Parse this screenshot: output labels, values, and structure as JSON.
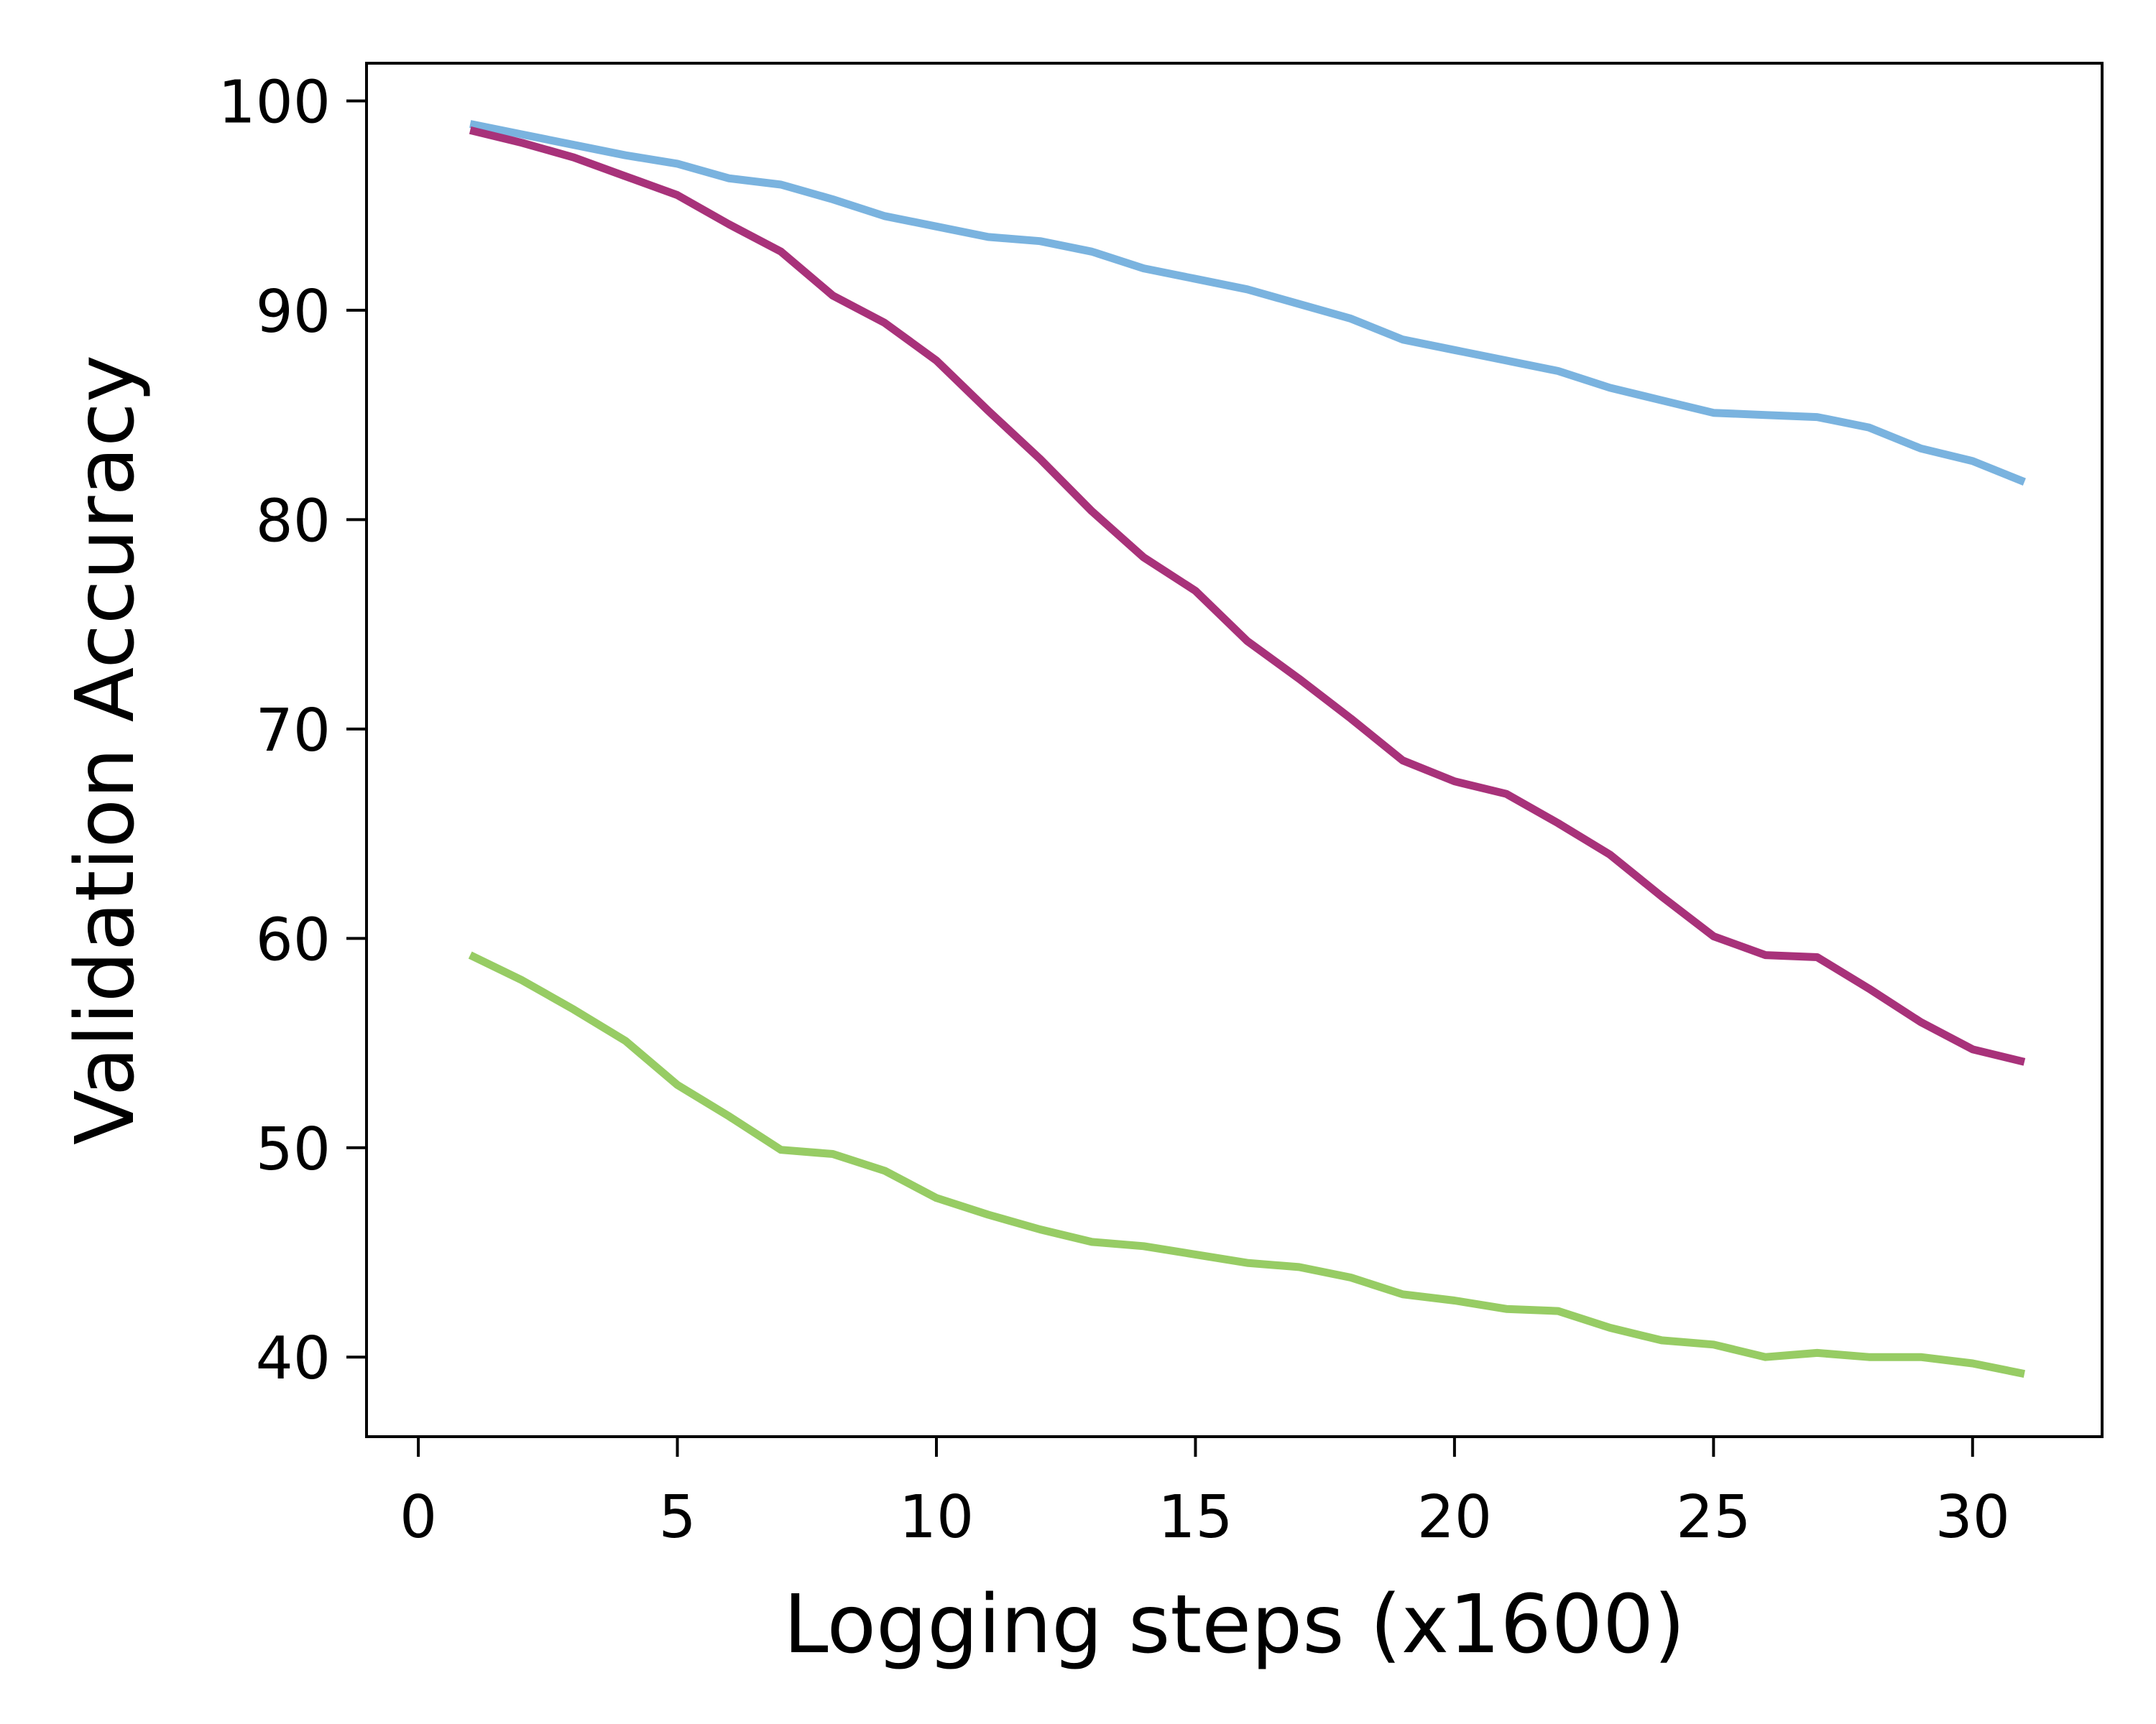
{
  "chart_data": {
    "type": "line",
    "title": "",
    "xlabel": "Logging steps (x1600)",
    "ylabel": "Validation Accuracy",
    "xlim": [
      -1,
      32.5
    ],
    "ylim": [
      36.2,
      101.8
    ],
    "xticks": [
      0,
      5,
      10,
      15,
      20,
      25,
      30
    ],
    "yticks": [
      40,
      50,
      60,
      70,
      80,
      90,
      100
    ],
    "grid": false,
    "legend": "none",
    "x": [
      1,
      2,
      3,
      4,
      5,
      6,
      7,
      8,
      9,
      10,
      11,
      12,
      13,
      14,
      15,
      16,
      17,
      18,
      19,
      20,
      21,
      22,
      23,
      24,
      25,
      26,
      27,
      28,
      29,
      30,
      31
    ],
    "series": [
      {
        "color": "#7ab3df",
        "values": [
          98.9,
          98.4,
          97.9,
          97.4,
          97.0,
          96.3,
          96.0,
          95.3,
          94.5,
          94.0,
          93.5,
          93.3,
          92.8,
          92.0,
          91.5,
          91.0,
          90.3,
          89.6,
          88.6,
          88.1,
          87.6,
          87.1,
          86.3,
          85.7,
          85.1,
          85.0,
          84.9,
          84.4,
          83.4,
          82.8,
          81.8
        ]
      },
      {
        "color": "#a8327a",
        "values": [
          98.6,
          98.0,
          97.3,
          96.4,
          95.5,
          94.1,
          92.8,
          90.7,
          89.4,
          87.6,
          85.2,
          82.9,
          80.4,
          78.2,
          76.6,
          74.2,
          72.4,
          70.5,
          68.5,
          67.5,
          66.9,
          65.5,
          64.0,
          62.0,
          60.1,
          59.2,
          59.1,
          57.6,
          56.0,
          54.7,
          54.1
        ]
      },
      {
        "color": "#97cc64",
        "values": [
          59.2,
          58.0,
          56.6,
          55.1,
          53.0,
          51.5,
          49.9,
          49.7,
          48.9,
          47.6,
          46.8,
          46.1,
          45.5,
          45.3,
          44.9,
          44.5,
          44.3,
          43.8,
          43.0,
          42.7,
          42.3,
          42.2,
          41.4,
          40.8,
          40.6,
          40.0,
          40.2,
          40.0,
          40.0,
          39.7,
          39.2
        ]
      }
    ]
  }
}
